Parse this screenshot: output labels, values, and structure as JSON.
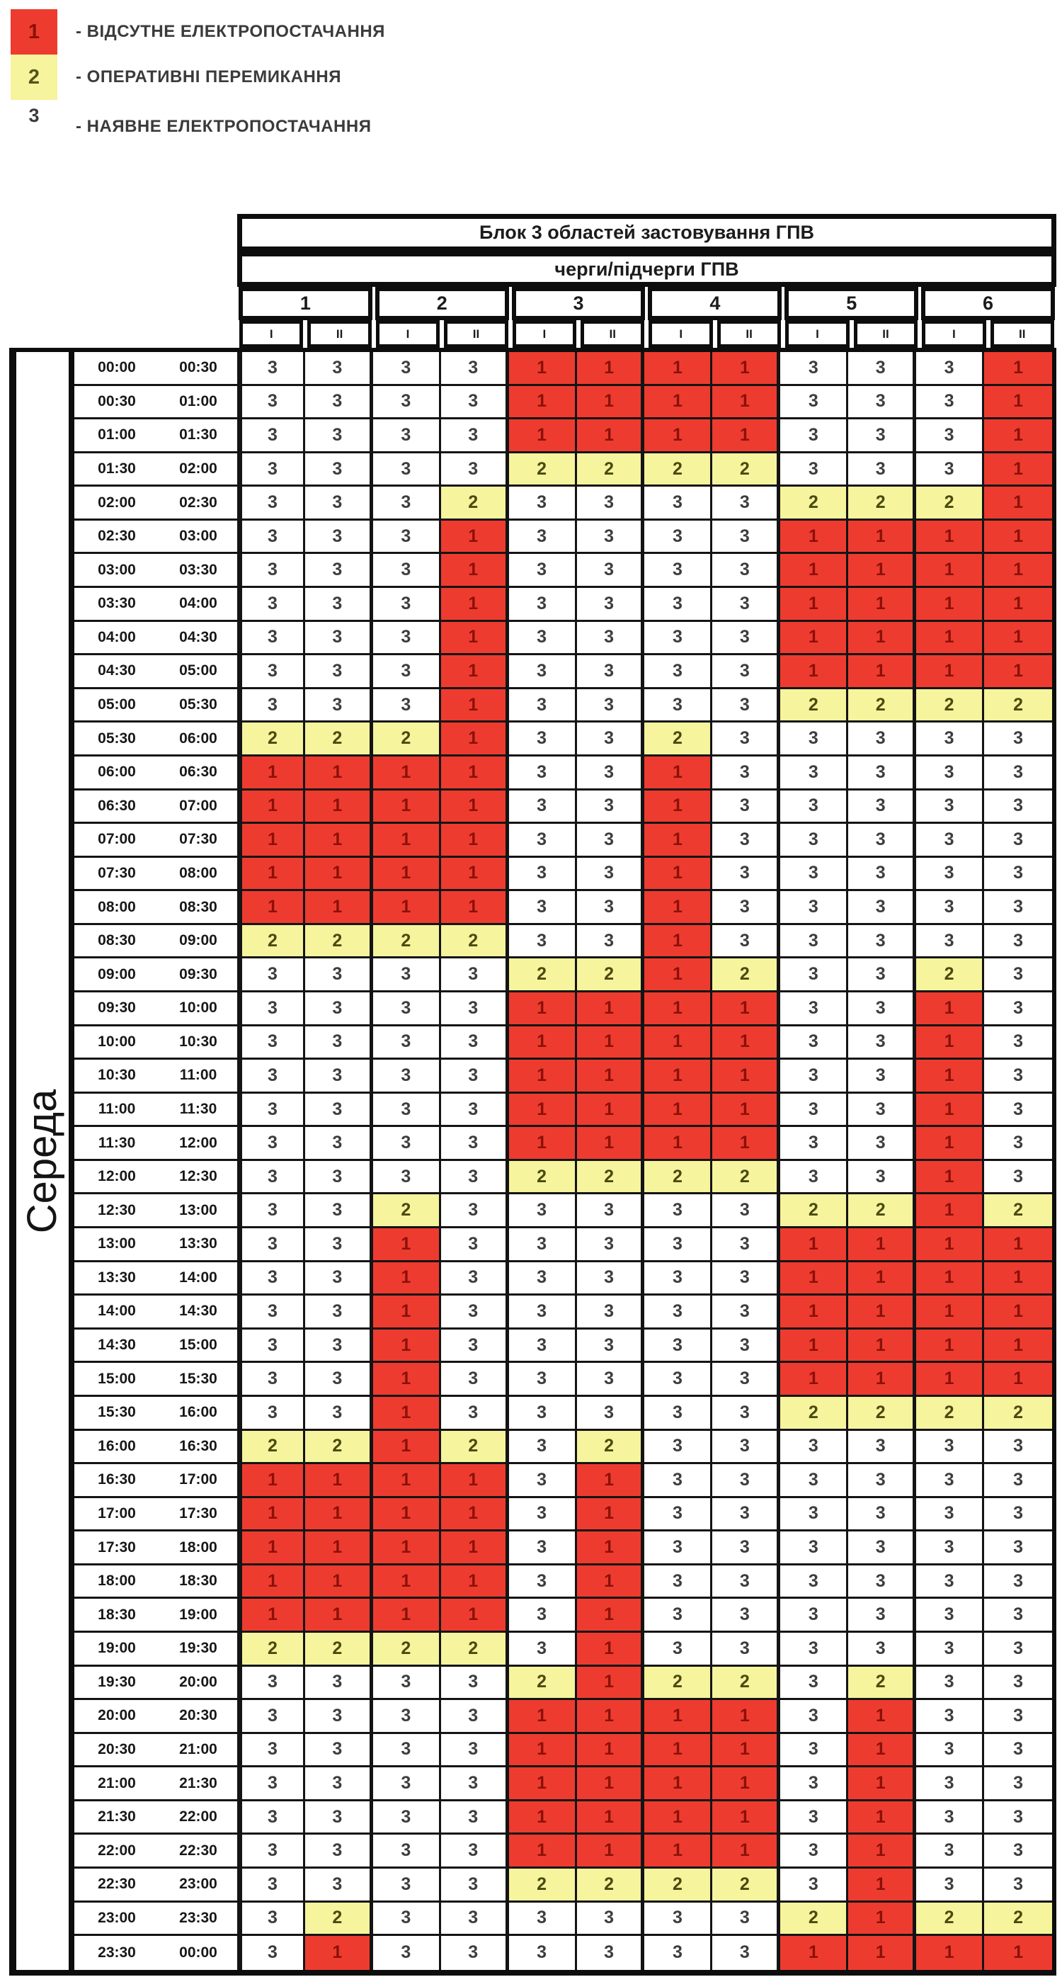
{
  "legend": {
    "items": [
      {
        "code": "1",
        "swatch": "#EE3B30",
        "label": "- ВІДСУТНЕ ЕЛЕКТРОПОСТАЧАННЯ"
      },
      {
        "code": "2",
        "swatch": "#F6F49C",
        "label": "- ОПЕРАТИВНІ ПЕРЕМИКАННЯ"
      },
      {
        "code": "3",
        "swatch": null,
        "label": "- НАЯВНЕ ЕЛЕКТРОПОСТАЧАННЯ"
      }
    ]
  },
  "chart_data": {
    "type": "heatmap",
    "title": "Блок 3 областей застовування ГПВ",
    "subtitle": "черги/підчерги ГПВ",
    "day": "Середа",
    "queues": [
      "1",
      "2",
      "3",
      "4",
      "5",
      "6"
    ],
    "subqueues": [
      "I",
      "II"
    ],
    "columns": [
      "1-I",
      "1-II",
      "2-I",
      "2-II",
      "3-I",
      "3-II",
      "4-I",
      "4-II",
      "5-I",
      "5-II",
      "6-I",
      "6-II"
    ],
    "value_meaning": {
      "1": "ВІДСУТНЕ ЕЛЕКТРОПОСТАЧАННЯ",
      "2": "ОПЕРАТИВНІ ПЕРЕМИКАННЯ",
      "3": "НАЯВНЕ ЕЛЕКТРОПОСТАЧАННЯ"
    },
    "colors": {
      "1": "#EE3B30",
      "2": "#F6F49C",
      "3": "#FFFFFF"
    },
    "time_slots": [
      [
        "00:00",
        "00:30"
      ],
      [
        "00:30",
        "01:00"
      ],
      [
        "01:00",
        "01:30"
      ],
      [
        "01:30",
        "02:00"
      ],
      [
        "02:00",
        "02:30"
      ],
      [
        "02:30",
        "03:00"
      ],
      [
        "03:00",
        "03:30"
      ],
      [
        "03:30",
        "04:00"
      ],
      [
        "04:00",
        "04:30"
      ],
      [
        "04:30",
        "05:00"
      ],
      [
        "05:00",
        "05:30"
      ],
      [
        "05:30",
        "06:00"
      ],
      [
        "06:00",
        "06:30"
      ],
      [
        "06:30",
        "07:00"
      ],
      [
        "07:00",
        "07:30"
      ],
      [
        "07:30",
        "08:00"
      ],
      [
        "08:00",
        "08:30"
      ],
      [
        "08:30",
        "09:00"
      ],
      [
        "09:00",
        "09:30"
      ],
      [
        "09:30",
        "10:00"
      ],
      [
        "10:00",
        "10:30"
      ],
      [
        "10:30",
        "11:00"
      ],
      [
        "11:00",
        "11:30"
      ],
      [
        "11:30",
        "12:00"
      ],
      [
        "12:00",
        "12:30"
      ],
      [
        "12:30",
        "13:00"
      ],
      [
        "13:00",
        "13:30"
      ],
      [
        "13:30",
        "14:00"
      ],
      [
        "14:00",
        "14:30"
      ],
      [
        "14:30",
        "15:00"
      ],
      [
        "15:00",
        "15:30"
      ],
      [
        "15:30",
        "16:00"
      ],
      [
        "16:00",
        "16:30"
      ],
      [
        "16:30",
        "17:00"
      ],
      [
        "17:00",
        "17:30"
      ],
      [
        "17:30",
        "18:00"
      ],
      [
        "18:00",
        "18:30"
      ],
      [
        "18:30",
        "19:00"
      ],
      [
        "19:00",
        "19:30"
      ],
      [
        "19:30",
        "20:00"
      ],
      [
        "20:00",
        "20:30"
      ],
      [
        "20:30",
        "21:00"
      ],
      [
        "21:00",
        "21:30"
      ],
      [
        "21:30",
        "22:00"
      ],
      [
        "22:00",
        "22:30"
      ],
      [
        "22:30",
        "23:00"
      ],
      [
        "23:00",
        "23:30"
      ],
      [
        "23:30",
        "00:00"
      ]
    ],
    "values": [
      [
        3,
        3,
        3,
        3,
        1,
        1,
        1,
        1,
        3,
        3,
        3,
        1
      ],
      [
        3,
        3,
        3,
        3,
        1,
        1,
        1,
        1,
        3,
        3,
        3,
        1
      ],
      [
        3,
        3,
        3,
        3,
        1,
        1,
        1,
        1,
        3,
        3,
        3,
        1
      ],
      [
        3,
        3,
        3,
        3,
        2,
        2,
        2,
        2,
        3,
        3,
        3,
        1
      ],
      [
        3,
        3,
        3,
        2,
        3,
        3,
        3,
        3,
        2,
        2,
        2,
        1
      ],
      [
        3,
        3,
        3,
        1,
        3,
        3,
        3,
        3,
        1,
        1,
        1,
        1
      ],
      [
        3,
        3,
        3,
        1,
        3,
        3,
        3,
        3,
        1,
        1,
        1,
        1
      ],
      [
        3,
        3,
        3,
        1,
        3,
        3,
        3,
        3,
        1,
        1,
        1,
        1
      ],
      [
        3,
        3,
        3,
        1,
        3,
        3,
        3,
        3,
        1,
        1,
        1,
        1
      ],
      [
        3,
        3,
        3,
        1,
        3,
        3,
        3,
        3,
        1,
        1,
        1,
        1
      ],
      [
        3,
        3,
        3,
        1,
        3,
        3,
        3,
        3,
        2,
        2,
        2,
        2
      ],
      [
        2,
        2,
        2,
        1,
        3,
        3,
        2,
        3,
        3,
        3,
        3,
        3
      ],
      [
        1,
        1,
        1,
        1,
        3,
        3,
        1,
        3,
        3,
        3,
        3,
        3
      ],
      [
        1,
        1,
        1,
        1,
        3,
        3,
        1,
        3,
        3,
        3,
        3,
        3
      ],
      [
        1,
        1,
        1,
        1,
        3,
        3,
        1,
        3,
        3,
        3,
        3,
        3
      ],
      [
        1,
        1,
        1,
        1,
        3,
        3,
        1,
        3,
        3,
        3,
        3,
        3
      ],
      [
        1,
        1,
        1,
        1,
        3,
        3,
        1,
        3,
        3,
        3,
        3,
        3
      ],
      [
        2,
        2,
        2,
        2,
        3,
        3,
        1,
        3,
        3,
        3,
        3,
        3
      ],
      [
        3,
        3,
        3,
        3,
        2,
        2,
        1,
        2,
        3,
        3,
        2,
        3
      ],
      [
        3,
        3,
        3,
        3,
        1,
        1,
        1,
        1,
        3,
        3,
        1,
        3
      ],
      [
        3,
        3,
        3,
        3,
        1,
        1,
        1,
        1,
        3,
        3,
        1,
        3
      ],
      [
        3,
        3,
        3,
        3,
        1,
        1,
        1,
        1,
        3,
        3,
        1,
        3
      ],
      [
        3,
        3,
        3,
        3,
        1,
        1,
        1,
        1,
        3,
        3,
        1,
        3
      ],
      [
        3,
        3,
        3,
        3,
        1,
        1,
        1,
        1,
        3,
        3,
        1,
        3
      ],
      [
        3,
        3,
        3,
        3,
        2,
        2,
        2,
        2,
        3,
        3,
        1,
        3
      ],
      [
        3,
        3,
        2,
        3,
        3,
        3,
        3,
        3,
        2,
        2,
        1,
        2
      ],
      [
        3,
        3,
        1,
        3,
        3,
        3,
        3,
        3,
        1,
        1,
        1,
        1
      ],
      [
        3,
        3,
        1,
        3,
        3,
        3,
        3,
        3,
        1,
        1,
        1,
        1
      ],
      [
        3,
        3,
        1,
        3,
        3,
        3,
        3,
        3,
        1,
        1,
        1,
        1
      ],
      [
        3,
        3,
        1,
        3,
        3,
        3,
        3,
        3,
        1,
        1,
        1,
        1
      ],
      [
        3,
        3,
        1,
        3,
        3,
        3,
        3,
        3,
        1,
        1,
        1,
        1
      ],
      [
        3,
        3,
        1,
        3,
        3,
        3,
        3,
        3,
        2,
        2,
        2,
        2
      ],
      [
        2,
        2,
        1,
        2,
        3,
        2,
        3,
        3,
        3,
        3,
        3,
        3
      ],
      [
        1,
        1,
        1,
        1,
        3,
        1,
        3,
        3,
        3,
        3,
        3,
        3
      ],
      [
        1,
        1,
        1,
        1,
        3,
        1,
        3,
        3,
        3,
        3,
        3,
        3
      ],
      [
        1,
        1,
        1,
        1,
        3,
        1,
        3,
        3,
        3,
        3,
        3,
        3
      ],
      [
        1,
        1,
        1,
        1,
        3,
        1,
        3,
        3,
        3,
        3,
        3,
        3
      ],
      [
        1,
        1,
        1,
        1,
        3,
        1,
        3,
        3,
        3,
        3,
        3,
        3
      ],
      [
        2,
        2,
        2,
        2,
        3,
        1,
        3,
        3,
        3,
        3,
        3,
        3
      ],
      [
        3,
        3,
        3,
        3,
        2,
        1,
        2,
        2,
        3,
        2,
        3,
        3
      ],
      [
        3,
        3,
        3,
        3,
        1,
        1,
        1,
        1,
        3,
        1,
        3,
        3
      ],
      [
        3,
        3,
        3,
        3,
        1,
        1,
        1,
        1,
        3,
        1,
        3,
        3
      ],
      [
        3,
        3,
        3,
        3,
        1,
        1,
        1,
        1,
        3,
        1,
        3,
        3
      ],
      [
        3,
        3,
        3,
        3,
        1,
        1,
        1,
        1,
        3,
        1,
        3,
        3
      ],
      [
        3,
        3,
        3,
        3,
        1,
        1,
        1,
        1,
        3,
        1,
        3,
        3
      ],
      [
        3,
        3,
        3,
        3,
        2,
        2,
        2,
        2,
        3,
        1,
        3,
        3
      ],
      [
        3,
        2,
        3,
        3,
        3,
        3,
        3,
        3,
        2,
        1,
        2,
        2
      ],
      [
        3,
        1,
        3,
        3,
        3,
        3,
        3,
        3,
        1,
        1,
        1,
        1
      ]
    ]
  }
}
